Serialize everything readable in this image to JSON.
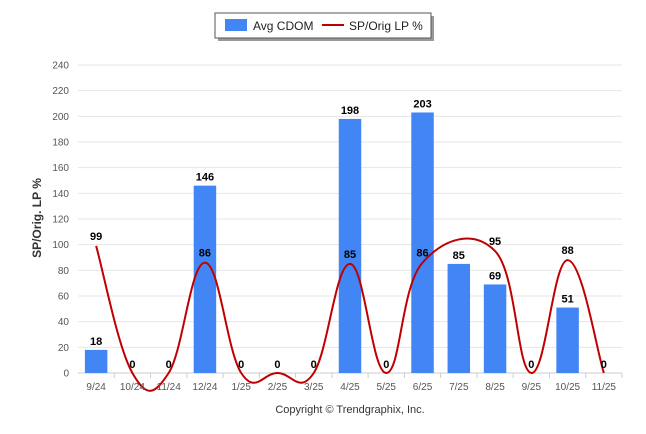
{
  "chart_data": {
    "type": "bar",
    "title": "",
    "xlabel": "",
    "ylabel": "SP/Orig. LP %",
    "ylim": [
      0,
      240
    ],
    "yticks": [
      0,
      20,
      40,
      60,
      80,
      100,
      120,
      140,
      160,
      180,
      200,
      220,
      240
    ],
    "categories": [
      "9/24",
      "10/24",
      "11/24",
      "12/24",
      "1/25",
      "2/25",
      "3/25",
      "4/25",
      "5/25",
      "6/25",
      "7/25",
      "8/25",
      "9/25",
      "10/25",
      "11/25"
    ],
    "series": [
      {
        "name": "Avg CDOM",
        "type": "bar",
        "color": "#4285f4",
        "values": [
          18,
          0,
          0,
          146,
          0,
          0,
          0,
          198,
          0,
          203,
          85,
          69,
          0,
          51,
          0
        ]
      },
      {
        "name": "SP/Orig LP %",
        "type": "line",
        "color": "#c00000",
        "values": [
          99,
          0,
          0,
          86,
          0,
          0,
          0,
          85,
          0,
          86,
          null,
          95,
          0,
          88,
          0
        ],
        "labels": [
          "99",
          "0",
          "0",
          "86",
          "0",
          "0",
          "0",
          "85",
          "0",
          "86",
          "",
          "95",
          "0",
          "88",
          "0"
        ]
      }
    ],
    "legend": "top-center",
    "grid": true
  },
  "footer": "Copyright © Trendgraphix, Inc."
}
